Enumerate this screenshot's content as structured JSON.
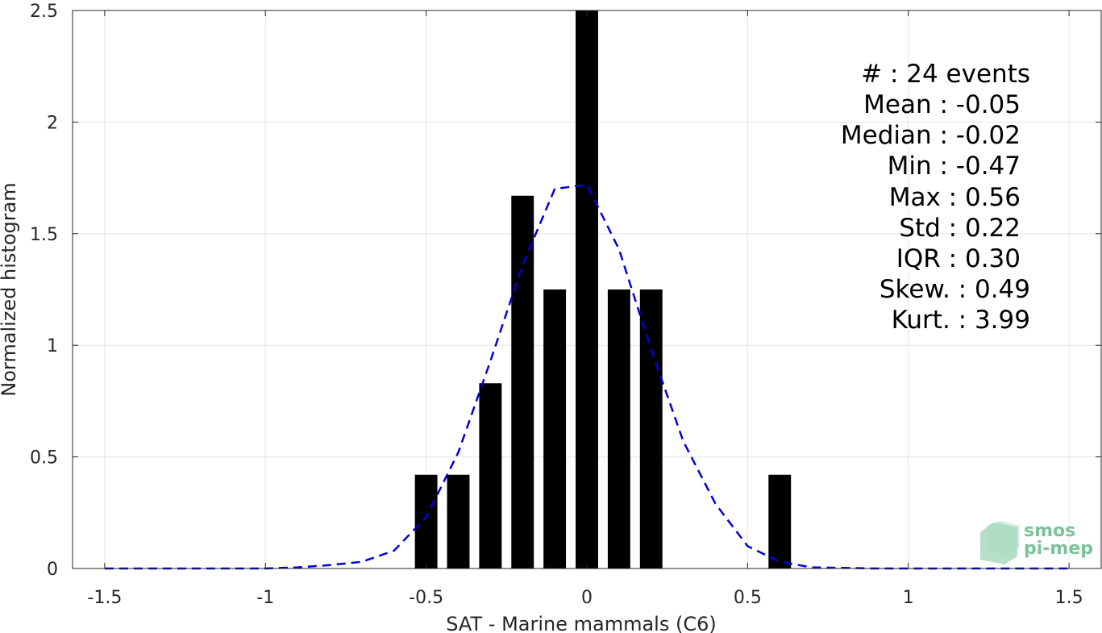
{
  "chart_data": {
    "type": "bar",
    "xlabel": "SAT - Marine mammals (C6)",
    "ylabel": "Normalized histogram",
    "xlim": [
      -1.6,
      1.6
    ],
    "ylim": [
      0,
      2.5
    ],
    "xticks": [
      -1.5,
      -1,
      -0.5,
      0,
      0.5,
      1,
      1.5
    ],
    "xtick_labels": [
      "-1.5",
      "-1",
      "-0.5",
      "0",
      "0.5",
      "1",
      "1.5"
    ],
    "yticks": [
      0,
      0.5,
      1,
      1.5,
      2,
      2.5
    ],
    "ytick_labels": [
      "0",
      "0.5",
      "1",
      "1.5",
      "2",
      "2.5"
    ],
    "grid": true,
    "bar_width": 0.07,
    "bar_color": "#000000",
    "bars": [
      {
        "x": -0.5,
        "value": 0.42
      },
      {
        "x": -0.4,
        "value": 0.42
      },
      {
        "x": -0.3,
        "value": 0.83
      },
      {
        "x": -0.2,
        "value": 1.67
      },
      {
        "x": -0.1,
        "value": 1.25
      },
      {
        "x": 0.0,
        "value": 2.5
      },
      {
        "x": 0.1,
        "value": 1.25
      },
      {
        "x": 0.2,
        "value": 1.25
      },
      {
        "x": 0.6,
        "value": 0.42
      }
    ],
    "fit_line": {
      "style": "dashed",
      "color": "#0000dd",
      "x": [
        -1.5,
        -1.3,
        -1.1,
        -1.0,
        -0.9,
        -0.8,
        -0.7,
        -0.6,
        -0.5,
        -0.4,
        -0.3,
        -0.2,
        -0.1,
        0.0,
        0.1,
        0.2,
        0.3,
        0.4,
        0.5,
        0.6,
        0.7,
        0.9,
        1.1,
        1.3,
        1.5
      ],
      "y": [
        0,
        0,
        0,
        0,
        0.005,
        0.015,
        0.03,
        0.08,
        0.23,
        0.52,
        0.93,
        1.36,
        1.7,
        1.72,
        1.43,
        0.98,
        0.57,
        0.29,
        0.1,
        0.03,
        0.005,
        0,
        0,
        0,
        0
      ]
    },
    "annotations": [
      "#  : 24 events",
      "Mean : -0.05",
      "Median : -0.02",
      "Min : -0.47",
      "Max : 0.56",
      "Std : 0.22",
      "IQR : 0.30",
      "Skew. : 0.49",
      "Kurt. : 3.99"
    ]
  },
  "logo": {
    "line1": "smos",
    "line2": "pi-mep"
  }
}
